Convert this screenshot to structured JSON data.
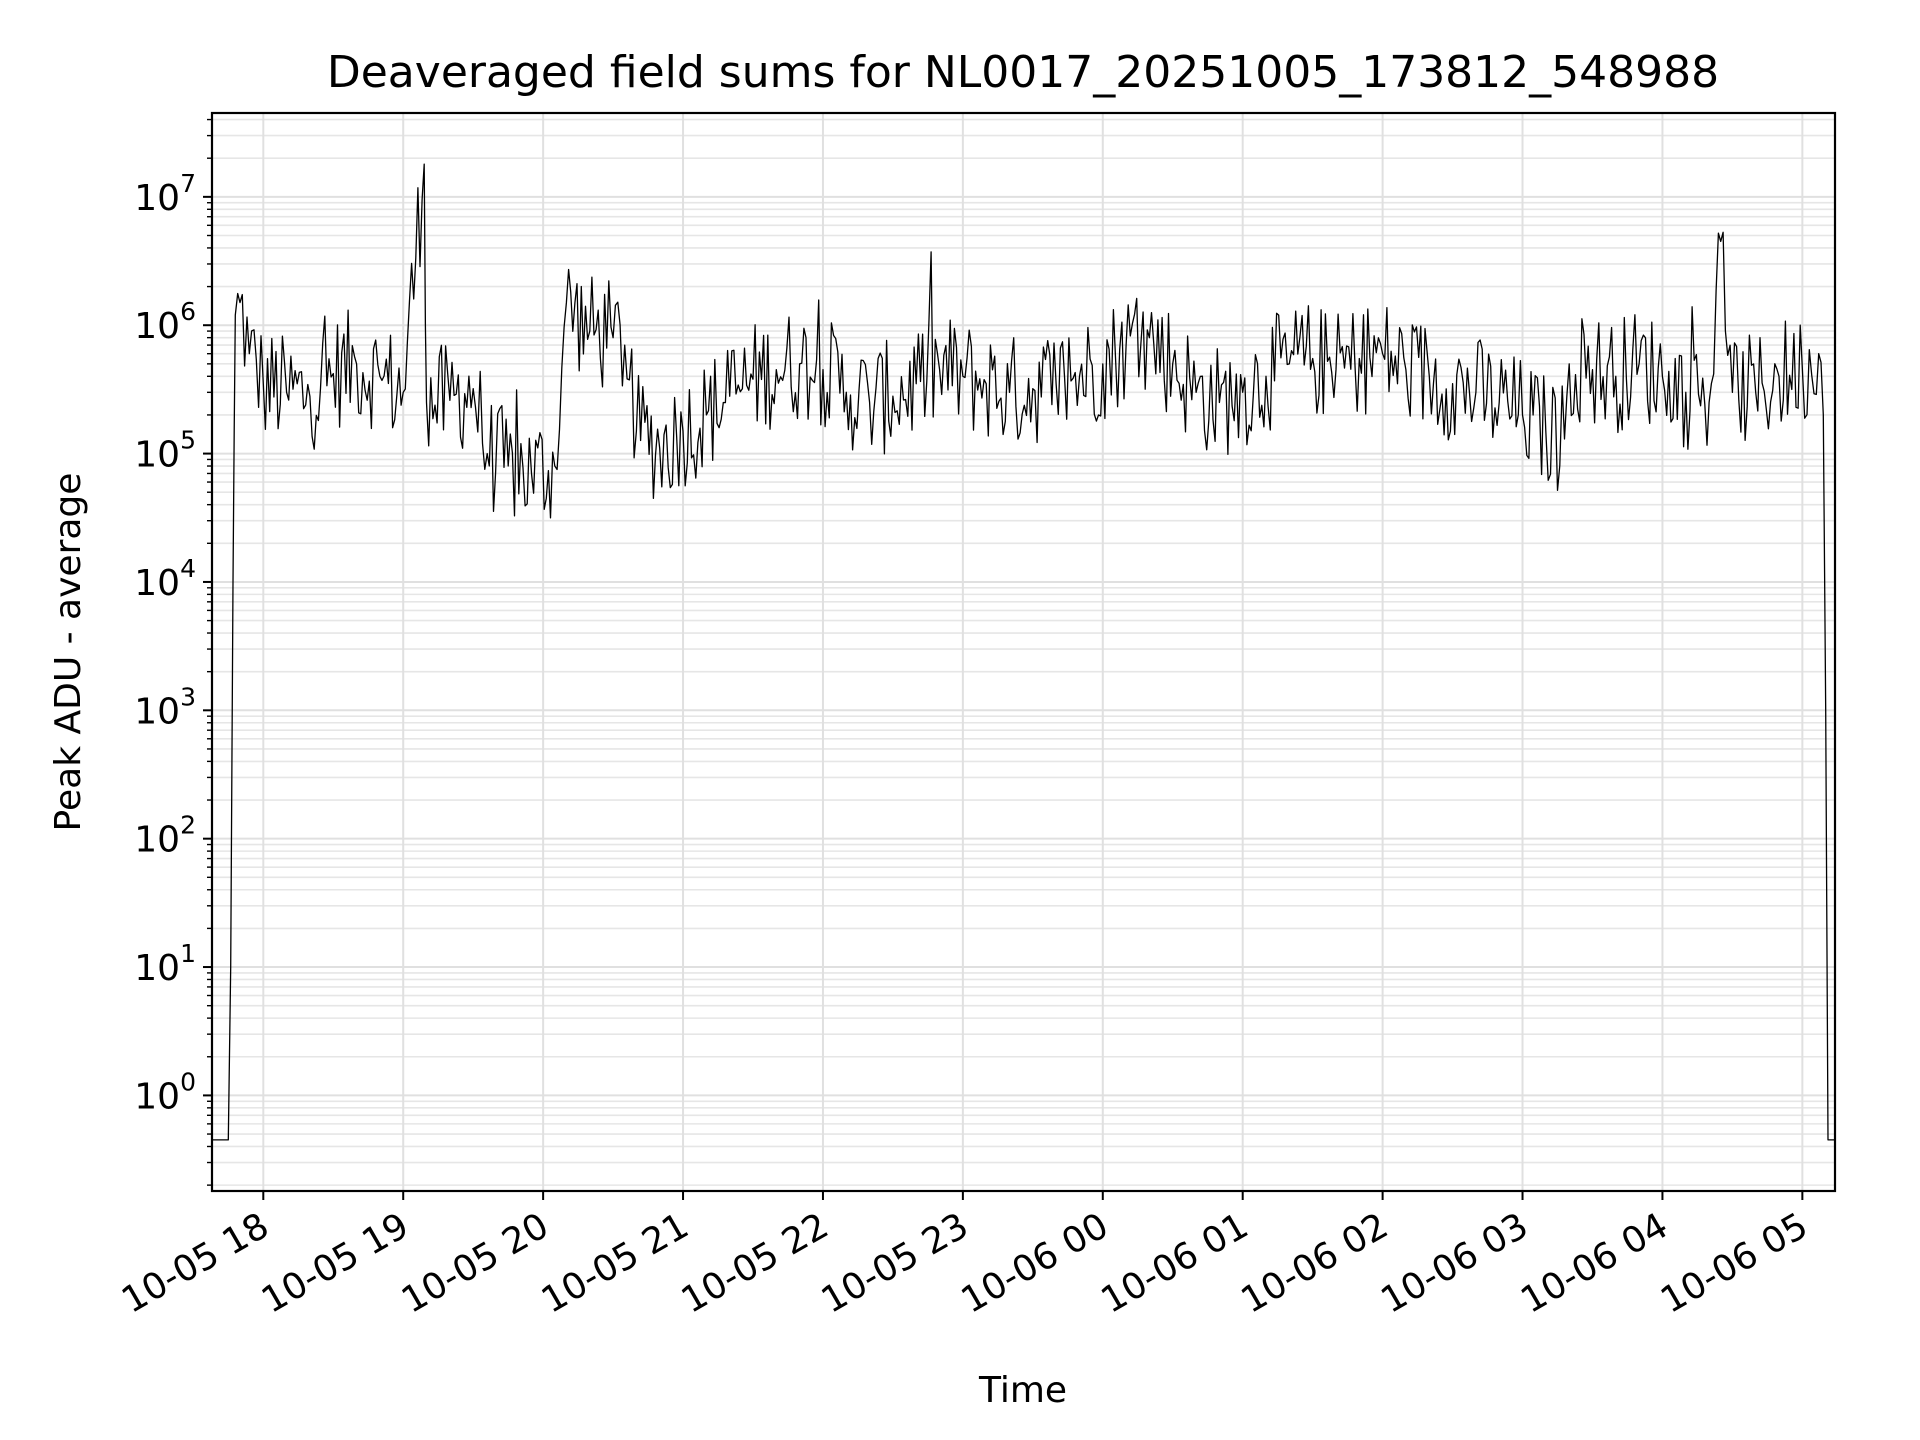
{
  "chart_data": {
    "type": "line",
    "title": "Deaveraged field sums for NL0017_20251005_173812_548988",
    "xlabel": "Time",
    "ylabel": "Peak ADU - average",
    "yscale": "log",
    "ylim": [
      0.18,
      45000000
    ],
    "xlim": [
      "10-05 17:38",
      "10-06 05:14"
    ],
    "grid": true,
    "line_color": "#000000",
    "x_ticks": [
      {
        "label": "10-05 18",
        "t": "10-05 18:00"
      },
      {
        "label": "10-05 19",
        "t": "10-05 19:00"
      },
      {
        "label": "10-05 20",
        "t": "10-05 20:00"
      },
      {
        "label": "10-05 21",
        "t": "10-05 21:00"
      },
      {
        "label": "10-05 22",
        "t": "10-05 22:00"
      },
      {
        "label": "10-05 23",
        "t": "10-05 23:00"
      },
      {
        "label": "10-06 00",
        "t": "10-06 00:00"
      },
      {
        "label": "10-06 01",
        "t": "10-06 01:00"
      },
      {
        "label": "10-06 02",
        "t": "10-06 02:00"
      },
      {
        "label": "10-06 03",
        "t": "10-06 03:00"
      },
      {
        "label": "10-06 04",
        "t": "10-06 04:00"
      },
      {
        "label": "10-06 05",
        "t": "10-06 05:00"
      }
    ],
    "y_ticks": [
      {
        "value": 1,
        "base": "10",
        "exp": "0"
      },
      {
        "value": 10,
        "base": "10",
        "exp": "1"
      },
      {
        "value": 100,
        "base": "10",
        "exp": "2"
      },
      {
        "value": 1000,
        "base": "10",
        "exp": "3"
      },
      {
        "value": 10000,
        "base": "10",
        "exp": "4"
      },
      {
        "value": 100000,
        "base": "10",
        "exp": "5"
      },
      {
        "value": 1000000,
        "base": "10",
        "exp": "6"
      },
      {
        "value": 10000000,
        "base": "10",
        "exp": "7"
      }
    ],
    "series": [
      {
        "points": [
          [
            "10-05 17:38",
            0.45
          ],
          [
            "10-05 17:45",
            0.45
          ],
          [
            "10-05 17:46",
            10
          ],
          [
            "10-05 17:47",
            10000
          ],
          [
            "10-05 17:48",
            1200000
          ],
          [
            "10-05 17:50",
            1500000
          ],
          [
            "10-05 17:54",
            600000
          ],
          [
            "10-05 18:00",
            350000
          ],
          [
            "10-05 18:10",
            300000
          ],
          [
            "10-05 18:20",
            280000
          ],
          [
            "10-05 18:30",
            420000
          ],
          [
            "10-05 18:40",
            500000
          ],
          [
            "10-05 18:50",
            400000
          ],
          [
            "10-05 19:00",
            300000
          ],
          [
            "10-05 19:09",
            18000000
          ],
          [
            "10-05 19:10",
            250000
          ],
          [
            "10-05 19:20",
            260000
          ],
          [
            "10-05 19:30",
            320000
          ],
          [
            "10-05 19:36",
            100000
          ],
          [
            "10-05 19:45",
            80000
          ],
          [
            "10-05 19:55",
            70000
          ],
          [
            "10-05 20:05",
            80000
          ],
          [
            "10-05 20:10",
            1500000
          ],
          [
            "10-05 20:20",
            900000
          ],
          [
            "10-05 20:30",
            800000
          ],
          [
            "10-05 20:35",
            700000
          ],
          [
            "10-05 20:40",
            150000
          ],
          [
            "10-05 20:50",
            110000
          ],
          [
            "10-05 21:00",
            150000
          ],
          [
            "10-05 21:10",
            200000
          ],
          [
            "10-05 21:20",
            280000
          ],
          [
            "10-05 21:30",
            380000
          ],
          [
            "10-05 21:40",
            450000
          ],
          [
            "10-05 21:50",
            500000
          ],
          [
            "10-05 22:00",
            450000
          ],
          [
            "10-05 22:10",
            300000
          ],
          [
            "10-05 22:20",
            250000
          ],
          [
            "10-05 22:30",
            280000
          ],
          [
            "10-05 22:40",
            350000
          ],
          [
            "10-05 22:50",
            450000
          ],
          [
            "10-05 23:00",
            400000
          ],
          [
            "10-05 23:10",
            350000
          ],
          [
            "10-05 23:20",
            300000
          ],
          [
            "10-05 23:30",
            320000
          ],
          [
            "10-05 23:40",
            350000
          ],
          [
            "10-05 23:50",
            400000
          ],
          [
            "10-06 00:00",
            500000
          ],
          [
            "10-06 00:10",
            700000
          ],
          [
            "10-06 00:20",
            800000
          ],
          [
            "10-06 00:30",
            500000
          ],
          [
            "10-06 00:40",
            300000
          ],
          [
            "10-06 00:50",
            250000
          ],
          [
            "10-06 01:00",
            300000
          ],
          [
            "10-06 01:10",
            400000
          ],
          [
            "10-06 01:20",
            500000
          ],
          [
            "10-06 01:30",
            550000
          ],
          [
            "10-06 01:40",
            450000
          ],
          [
            "10-06 01:50",
            550000
          ],
          [
            "10-06 02:00",
            600000
          ],
          [
            "10-06 02:10",
            450000
          ],
          [
            "10-06 02:20",
            400000
          ],
          [
            "10-06 02:30",
            350000
          ],
          [
            "10-06 02:40",
            300000
          ],
          [
            "10-06 02:50",
            250000
          ],
          [
            "10-06 03:00",
            200000
          ],
          [
            "10-06 03:10",
            150000
          ],
          [
            "10-06 03:18",
            130000
          ],
          [
            "10-06 03:20",
            500000
          ],
          [
            "10-06 03:30",
            450000
          ],
          [
            "10-06 03:40",
            400000
          ],
          [
            "10-06 03:50",
            500000
          ],
          [
            "10-06 04:00",
            400000
          ],
          [
            "10-06 04:10",
            300000
          ],
          [
            "10-06 04:20",
            250000
          ],
          [
            "10-06 04:25",
            4500000
          ],
          [
            "10-06 04:30",
            300000
          ],
          [
            "10-06 04:40",
            300000
          ],
          [
            "10-06 04:50",
            400000
          ],
          [
            "10-06 05:00",
            450000
          ],
          [
            "10-06 05:07",
            600000
          ],
          [
            "10-06 05:09",
            200000
          ],
          [
            "10-06 05:10",
            1000
          ],
          [
            "10-06 05:11",
            0.45
          ],
          [
            "10-06 05:14",
            0.45
          ]
        ]
      }
    ]
  }
}
